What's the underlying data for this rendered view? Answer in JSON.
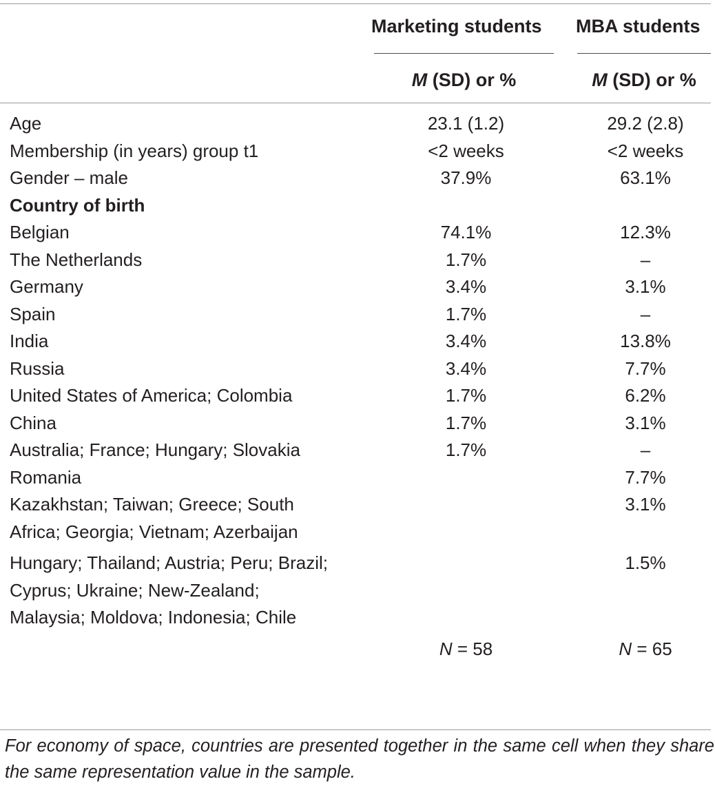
{
  "header": {
    "col1": "Marketing students",
    "col2": "MBA students",
    "stat_m": "M",
    "stat_rest": " (SD) or %"
  },
  "rows": [
    {
      "label": "Age",
      "v1": "23.1 (1.2)",
      "v2": "29.2 (2.8)"
    },
    {
      "label": "Membership (in years) group t1",
      "v1": "<2 weeks",
      "v2": "<2 weeks"
    },
    {
      "label": "Gender – male",
      "v1": "37.9%",
      "v2": "63.1%"
    },
    {
      "label": "Country of birth",
      "v1": "",
      "v2": ""
    },
    {
      "label": "Belgian",
      "v1": "74.1%",
      "v2": "12.3%"
    },
    {
      "label": "The Netherlands",
      "v1": "1.7%",
      "v2": "–"
    },
    {
      "label": "Germany",
      "v1": "3.4%",
      "v2": "3.1%"
    },
    {
      "label": "Spain",
      "v1": "1.7%",
      "v2": "–"
    },
    {
      "label": "India",
      "v1": "3.4%",
      "v2": "13.8%"
    },
    {
      "label": "Russia",
      "v1": "3.4%",
      "v2": "7.7%"
    },
    {
      "label": "United States of America; Colombia",
      "v1": "1.7%",
      "v2": "6.2%"
    },
    {
      "label": "China",
      "v1": "1.7%",
      "v2": "3.1%"
    },
    {
      "label": "Australia; France; Hungary; Slovakia",
      "v1": "1.7%",
      "v2": "–"
    },
    {
      "label": "Romania",
      "v1": "",
      "v2": "7.7%"
    },
    {
      "label_lines": [
        "Kazakhstan; Taiwan; Greece; South",
        "Africa; Georgia; Vietnam; Azerbaijan"
      ],
      "v1": "",
      "v2": "3.1%"
    },
    {
      "label_lines": [
        "Hungary; Thailand; Austria; Peru; Brazil;",
        "Cyprus; Ukraine; New-Zealand;",
        "Malaysia; Moldova; Indonesia; Chile"
      ],
      "v1": "",
      "v2": "1.5%"
    }
  ],
  "totals": {
    "n_label": "N",
    "v1": " = 58",
    "v2": " = 65"
  },
  "note": "For economy of space, countries are presented together in the same cell when they share the same representation value in the sample."
}
